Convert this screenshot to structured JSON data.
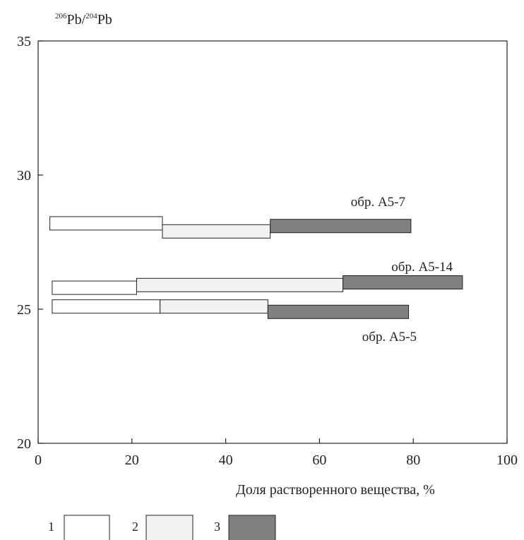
{
  "chart_data": {
    "type": "bar",
    "orientation": "horizontal-range",
    "ylabel": {
      "sup1": "206",
      "main1": "Pb/",
      "sup2": "204",
      "main2": "Pb"
    },
    "xlabel": "Доля растворенного вещества, %",
    "xlim": [
      0,
      100
    ],
    "ylim": [
      20,
      35
    ],
    "x_ticks": [
      "0",
      "20",
      "40",
      "60",
      "80",
      "100"
    ],
    "y_ticks": [
      "20",
      "25",
      "30",
      "35"
    ],
    "x_tick_values": [
      0,
      20,
      40,
      60,
      80,
      100
    ],
    "y_tick_values": [
      20,
      25,
      30,
      35
    ],
    "grid": false,
    "legend": {
      "placement": "bottom-left",
      "entries": [
        {
          "label": "1",
          "fill": "#ffffff"
        },
        {
          "label": "2",
          "fill": "#f2f2f2"
        },
        {
          "label": "3",
          "fill": "#808080"
        }
      ]
    },
    "series": [
      {
        "name": "обр. A5-7",
        "y": 28.1,
        "segments": [
          {
            "fraction": 1,
            "x_start": 2.5,
            "x_end": 26.5,
            "y": 28.2
          },
          {
            "fraction": 2,
            "x_start": 26.5,
            "x_end": 49.5,
            "y": 27.9
          },
          {
            "fraction": 3,
            "x_start": 49.5,
            "x_end": 79.5,
            "y": 28.1
          }
        ]
      },
      {
        "name": "обр. A5-14",
        "y": 25.9,
        "segments": [
          {
            "fraction": 1,
            "x_start": 3,
            "x_end": 21,
            "y": 25.8
          },
          {
            "fraction": 2,
            "x_start": 21,
            "x_end": 65,
            "y": 25.9
          },
          {
            "fraction": 3,
            "x_start": 65,
            "x_end": 90.5,
            "y": 26.0
          }
        ]
      },
      {
        "name": "обр. A5-5",
        "y": 25.0,
        "segments": [
          {
            "fraction": 1,
            "x_start": 3,
            "x_end": 26,
            "y": 25.1
          },
          {
            "fraction": 2,
            "x_start": 26,
            "x_end": 49,
            "y": 25.1
          },
          {
            "fraction": 3,
            "x_start": 49,
            "x_end": 79,
            "y": 24.9
          }
        ]
      }
    ],
    "colors": {
      "fraction_1": "#ffffff",
      "fraction_2": "#f2f2f2",
      "fraction_3": "#808080",
      "stroke": "#222222"
    }
  }
}
